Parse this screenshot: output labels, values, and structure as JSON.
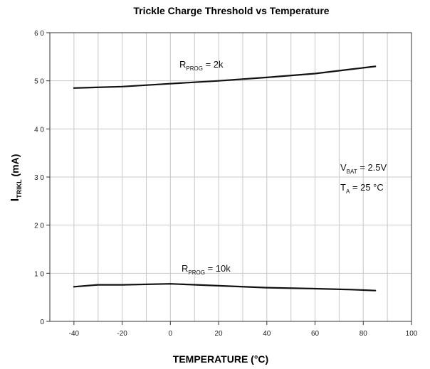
{
  "chart_data": {
    "type": "line",
    "title": "Trickle Charge Threshold vs Temperature",
    "xlabel": "TEMPERATURE (°C)",
    "ylabel": {
      "main": "I",
      "sub": "TRIKL",
      "rest": " (mA)"
    },
    "xlim": [
      -50,
      100
    ],
    "ylim": [
      0,
      60
    ],
    "xticks": [
      -40,
      -20,
      0,
      20,
      40,
      60,
      80,
      100
    ],
    "yticks": [
      0,
      10,
      20,
      30,
      40,
      50,
      60
    ],
    "xtick_labels": [
      "-40",
      "-20",
      "0",
      "20",
      "40",
      "60",
      "80",
      "100"
    ],
    "ytick_labels": [
      "0",
      "1 0",
      "2 0",
      "3 0",
      "4 0",
      "5 0",
      "6 0"
    ],
    "grid": true,
    "series": [
      {
        "name": {
          "main": "R",
          "sub": "PROG",
          "rest": " = 2k"
        },
        "x": [
          -40,
          -20,
          0,
          20,
          40,
          60,
          75,
          85
        ],
        "y": [
          48.5,
          48.8,
          49.4,
          50.0,
          50.7,
          51.5,
          52.4,
          53.0
        ]
      },
      {
        "name": {
          "main": "R",
          "sub": "PROG",
          "rest": " = 10k"
        },
        "x": [
          -40,
          -30,
          -20,
          0,
          20,
          40,
          60,
          75,
          85
        ],
        "y": [
          7.2,
          7.6,
          7.6,
          7.8,
          7.4,
          7.0,
          6.8,
          6.6,
          6.4
        ]
      }
    ],
    "annotations": [
      {
        "main": "V",
        "sub": "BAT",
        "rest": " = 2.5V"
      },
      {
        "main": "T",
        "sub": "A",
        "rest": " = 25 °C"
      }
    ]
  }
}
